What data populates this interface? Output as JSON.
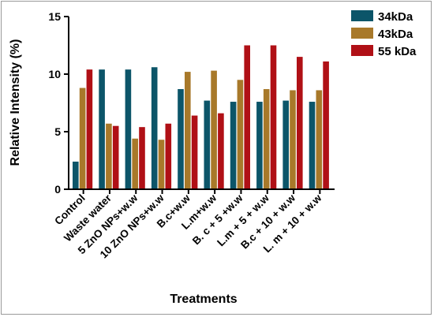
{
  "chart_data": {
    "type": "bar",
    "title": "",
    "xlabel": "Treatments",
    "ylabel": "Relative Intensity (%)",
    "ylim": [
      0,
      15
    ],
    "yticks": [
      0,
      5,
      10,
      15
    ],
    "grid": false,
    "legend_position": "top-right",
    "categories": [
      "Control",
      "Waste water",
      "5 ZnO NPs+w.w",
      "10 ZnO NPs+w.w",
      "B.c+w.w",
      "L.m+w.w",
      "B. c + 5 +w.w",
      "L.m + 5 + w.w",
      "B.c + 10 + w.w",
      "L. m + 10 + w.w"
    ],
    "series": [
      {
        "name": "34kDa",
        "color": "#0c5569",
        "values": [
          2.4,
          10.4,
          10.4,
          10.6,
          8.7,
          7.7,
          7.6,
          7.6,
          7.7,
          7.6
        ]
      },
      {
        "name": "43kDa",
        "color": "#a8792a",
        "values": [
          8.8,
          5.7,
          4.4,
          4.3,
          10.2,
          10.3,
          9.5,
          8.7,
          8.6,
          8.6
        ]
      },
      {
        "name": "55 kDa",
        "color": "#b01016",
        "values": [
          10.4,
          5.5,
          5.4,
          5.7,
          6.4,
          6.6,
          12.5,
          12.5,
          11.5,
          11.1
        ]
      }
    ]
  }
}
